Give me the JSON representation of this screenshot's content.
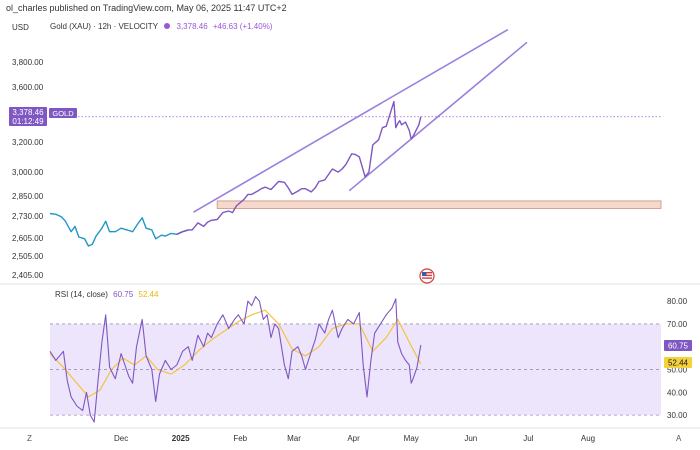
{
  "header": {
    "publisher": "ol_charles published on TradingView.com, May 06, 2025 11:47 UTC+2"
  },
  "legend": {
    "symbol": "Gold (XAU) · 12h · VELOCITY",
    "price": "3,378.46",
    "change": "+46.63 (+1.40%)",
    "currency": "USD"
  },
  "price_tag": {
    "value": "3,378.46",
    "timer": "01:12:49",
    "label": "GOLD"
  },
  "rsi_legend": {
    "name": "RSI (14, close)",
    "rsi_value": "60.75",
    "ma_value": "52.44"
  },
  "rsi_tags": {
    "rsi": "60.75",
    "ma": "52.44"
  },
  "corners": {
    "left": "Z",
    "right": "A"
  },
  "colors": {
    "price_line_pre_jan": "#2196c9",
    "price_line_post_jan": "#7e57c2",
    "channel": "#9a7fe0",
    "support_zone_fill": "#f6d9cc",
    "rsi_line": "#7e57c2",
    "rsi_ma": "#f5c242",
    "rsi_band": "#ede5fb",
    "last_price_tag": "#7e57c2",
    "ma_tag": "#f5d23c"
  },
  "chart_data": [
    {
      "type": "line",
      "title": "Gold (XAU) · 12h · VELOCITY",
      "x_ticks": [
        "Dec",
        "2025",
        "Feb",
        "Mar",
        "Apr",
        "May",
        "Jun",
        "Jul",
        "Aug"
      ],
      "y_ticks": [
        "3,800.00",
        "3,600.00",
        "3,200.00",
        "3,000.00",
        "2,850.00",
        "2,730.00",
        "2,605.00",
        "2,505.00",
        "2,405.00"
      ],
      "y_scale": "log",
      "ylim": [
        2380,
        4000
      ],
      "xlim": [
        "2024-10-25",
        "2025-09-08"
      ],
      "series": [
        {
          "name": "Gold (XAU)",
          "points": [
            [
              "2024-10-25",
              2745
            ],
            [
              "2024-10-28",
              2740
            ],
            [
              "2024-10-31",
              2725
            ],
            [
              "2024-11-02",
              2700
            ],
            [
              "2024-11-05",
              2640
            ],
            [
              "2024-11-07",
              2670
            ],
            [
              "2024-11-09",
              2610
            ],
            [
              "2024-11-12",
              2600
            ],
            [
              "2024-11-14",
              2560
            ],
            [
              "2024-11-16",
              2570
            ],
            [
              "2024-11-18",
              2615
            ],
            [
              "2024-11-21",
              2660
            ],
            [
              "2024-11-23",
              2700
            ],
            [
              "2024-11-25",
              2640
            ],
            [
              "2024-11-28",
              2640
            ],
            [
              "2024-12-01",
              2660
            ],
            [
              "2024-12-04",
              2650
            ],
            [
              "2024-12-07",
              2640
            ],
            [
              "2024-12-10",
              2690
            ],
            [
              "2024-12-12",
              2720
            ],
            [
              "2024-12-14",
              2660
            ],
            [
              "2024-12-17",
              2650
            ],
            [
              "2024-12-19",
              2600
            ],
            [
              "2024-12-22",
              2620
            ],
            [
              "2024-12-24",
              2615
            ],
            [
              "2024-12-27",
              2630
            ],
            [
              "2024-12-30",
              2625
            ],
            [
              "2025-01-02",
              2640
            ],
            [
              "2025-01-05",
              2650
            ],
            [
              "2025-01-07",
              2650
            ],
            [
              "2025-01-10",
              2690
            ],
            [
              "2025-01-13",
              2670
            ],
            [
              "2025-01-15",
              2695
            ],
            [
              "2025-01-17",
              2705
            ],
            [
              "2025-01-20",
              2710
            ],
            [
              "2025-01-23",
              2750
            ],
            [
              "2025-01-26",
              2760
            ],
            [
              "2025-01-28",
              2750
            ],
            [
              "2025-01-30",
              2790
            ],
            [
              "2025-02-03",
              2830
            ],
            [
              "2025-02-05",
              2860
            ],
            [
              "2025-02-07",
              2860
            ],
            [
              "2025-02-10",
              2880
            ],
            [
              "2025-02-12",
              2895
            ],
            [
              "2025-02-14",
              2905
            ],
            [
              "2025-02-17",
              2890
            ],
            [
              "2025-02-19",
              2915
            ],
            [
              "2025-02-21",
              2940
            ],
            [
              "2025-02-24",
              2935
            ],
            [
              "2025-02-26",
              2900
            ],
            [
              "2025-02-28",
              2860
            ],
            [
              "2025-03-03",
              2880
            ],
            [
              "2025-03-05",
              2895
            ],
            [
              "2025-03-07",
              2895
            ],
            [
              "2025-03-10",
              2875
            ],
            [
              "2025-03-12",
              2900
            ],
            [
              "2025-03-14",
              2940
            ],
            [
              "2025-03-17",
              2950
            ],
            [
              "2025-03-19",
              2985
            ],
            [
              "2025-03-21",
              3020
            ],
            [
              "2025-03-24",
              3000
            ],
            [
              "2025-03-26",
              3020
            ],
            [
              "2025-03-28",
              3050
            ],
            [
              "2025-03-31",
              3120
            ],
            [
              "2025-04-02",
              3115
            ],
            [
              "2025-04-04",
              3100
            ],
            [
              "2025-04-07",
              2970
            ],
            [
              "2025-04-09",
              3000
            ],
            [
              "2025-04-11",
              3180
            ],
            [
              "2025-04-14",
              3215
            ],
            [
              "2025-04-16",
              3300
            ],
            [
              "2025-04-18",
              3310
            ],
            [
              "2025-04-20",
              3400
            ],
            [
              "2025-04-22",
              3490
            ],
            [
              "2025-04-23",
              3300
            ],
            [
              "2025-04-24",
              3330
            ],
            [
              "2025-04-25",
              3350
            ],
            [
              "2025-04-26",
              3320
            ],
            [
              "2025-04-28",
              3340
            ],
            [
              "2025-04-29",
              3310
            ],
            [
              "2025-04-30",
              3280
            ],
            [
              "2025-05-01",
              3220
            ],
            [
              "2025-05-02",
              3240
            ],
            [
              "2025-05-05",
              3320
            ],
            [
              "2025-05-06",
              3378.46
            ]
          ]
        }
      ],
      "channel_lines": [
        {
          "from": [
            "2025-01-08",
            2755
          ],
          "to": [
            "2025-06-20",
            4070
          ]
        },
        {
          "from": [
            "2025-03-30",
            2885
          ],
          "to": [
            "2025-06-30",
            3960
          ]
        }
      ],
      "support_zone": [
        2775,
        2820
      ],
      "last_price": 3378.46
    },
    {
      "type": "line",
      "title": "RSI (14, close)",
      "ylim": [
        27,
        84
      ],
      "y_ticks": [
        "80.00",
        "70.00",
        "50.00",
        "40.00",
        "30.00"
      ],
      "band": [
        30,
        70
      ],
      "series": [
        {
          "name": "RSI",
          "points": [
            [
              "2024-10-25",
              58
            ],
            [
              "2024-10-28",
              54
            ],
            [
              "2024-11-01",
              58
            ],
            [
              "2024-11-03",
              45
            ],
            [
              "2024-11-05",
              38
            ],
            [
              "2024-11-08",
              34
            ],
            [
              "2024-11-11",
              32
            ],
            [
              "2024-11-13",
              40
            ],
            [
              "2024-11-15",
              30
            ],
            [
              "2024-11-17",
              27
            ],
            [
              "2024-11-19",
              45
            ],
            [
              "2024-11-21",
              62
            ],
            [
              "2024-11-23",
              74
            ],
            [
              "2024-11-25",
              51
            ],
            [
              "2024-11-28",
              46
            ],
            [
              "2024-12-01",
              57
            ],
            [
              "2024-12-03",
              52
            ],
            [
              "2024-12-05",
              47
            ],
            [
              "2024-12-07",
              44
            ],
            [
              "2024-12-09",
              60
            ],
            [
              "2024-12-12",
              72
            ],
            [
              "2024-12-14",
              56
            ],
            [
              "2024-12-17",
              50
            ],
            [
              "2024-12-19",
              36
            ],
            [
              "2024-12-21",
              48
            ],
            [
              "2024-12-24",
              54
            ],
            [
              "2024-12-27",
              50
            ],
            [
              "2024-12-30",
              52
            ],
            [
              "2025-01-02",
              58
            ],
            [
              "2025-01-05",
              60
            ],
            [
              "2025-01-07",
              54
            ],
            [
              "2025-01-10",
              65
            ],
            [
              "2025-01-13",
              60
            ],
            [
              "2025-01-15",
              66
            ],
            [
              "2025-01-17",
              64
            ],
            [
              "2025-01-20",
              70
            ],
            [
              "2025-01-23",
              74
            ],
            [
              "2025-01-26",
              68
            ],
            [
              "2025-01-29",
              72
            ],
            [
              "2025-01-31",
              74
            ],
            [
              "2025-02-03",
              70
            ],
            [
              "2025-02-05",
              80
            ],
            [
              "2025-02-07",
              78
            ],
            [
              "2025-02-09",
              82
            ],
            [
              "2025-02-11",
              80
            ],
            [
              "2025-02-13",
              72
            ],
            [
              "2025-02-15",
              74
            ],
            [
              "2025-02-17",
              64
            ],
            [
              "2025-02-19",
              70
            ],
            [
              "2025-02-21",
              68
            ],
            [
              "2025-02-24",
              52
            ],
            [
              "2025-02-26",
              46
            ],
            [
              "2025-02-28",
              58
            ],
            [
              "2025-03-03",
              60
            ],
            [
              "2025-03-05",
              56
            ],
            [
              "2025-03-07",
              50
            ],
            [
              "2025-03-10",
              58
            ],
            [
              "2025-03-12",
              63
            ],
            [
              "2025-03-14",
              70
            ],
            [
              "2025-03-17",
              66
            ],
            [
              "2025-03-19",
              72
            ],
            [
              "2025-03-21",
              76
            ],
            [
              "2025-03-24",
              64
            ],
            [
              "2025-03-26",
              68
            ],
            [
              "2025-03-29",
              72
            ],
            [
              "2025-04-01",
              70
            ],
            [
              "2025-04-04",
              75
            ],
            [
              "2025-04-06",
              52
            ],
            [
              "2025-04-08",
              38
            ],
            [
              "2025-04-10",
              54
            ],
            [
              "2025-04-12",
              66
            ],
            [
              "2025-04-15",
              70
            ],
            [
              "2025-04-18",
              74
            ],
            [
              "2025-04-21",
              77
            ],
            [
              "2025-04-23",
              81
            ],
            [
              "2025-04-24",
              62
            ],
            [
              "2025-04-26",
              57
            ],
            [
              "2025-04-28",
              54
            ],
            [
              "2025-04-30",
              52
            ],
            [
              "2025-05-01",
              44
            ],
            [
              "2025-05-02",
              46
            ],
            [
              "2025-05-04",
              51
            ],
            [
              "2025-05-06",
              60.75
            ]
          ]
        },
        {
          "name": "RSI-based MA",
          "points": [
            [
              "2024-10-25",
              57
            ],
            [
              "2024-11-01",
              51
            ],
            [
              "2024-11-08",
              44
            ],
            [
              "2024-11-14",
              38
            ],
            [
              "2024-11-20",
              41
            ],
            [
              "2024-11-26",
              50
            ],
            [
              "2024-12-02",
              55
            ],
            [
              "2024-12-08",
              52
            ],
            [
              "2024-12-14",
              56
            ],
            [
              "2024-12-20",
              50
            ],
            [
              "2024-12-27",
              48
            ],
            [
              "2025-01-03",
              52
            ],
            [
              "2025-01-10",
              58
            ],
            [
              "2025-01-17",
              63
            ],
            [
              "2025-01-24",
              67
            ],
            [
              "2025-01-31",
              71
            ],
            [
              "2025-02-07",
              74
            ],
            [
              "2025-02-14",
              76
            ],
            [
              "2025-02-21",
              70
            ],
            [
              "2025-02-28",
              59
            ],
            [
              "2025-03-07",
              56
            ],
            [
              "2025-03-14",
              60
            ],
            [
              "2025-03-21",
              68
            ],
            [
              "2025-03-28",
              70
            ],
            [
              "2025-04-04",
              70
            ],
            [
              "2025-04-11",
              58
            ],
            [
              "2025-04-18",
              64
            ],
            [
              "2025-04-24",
              72
            ],
            [
              "2025-04-30",
              62
            ],
            [
              "2025-05-06",
              52.44
            ]
          ]
        }
      ]
    }
  ]
}
